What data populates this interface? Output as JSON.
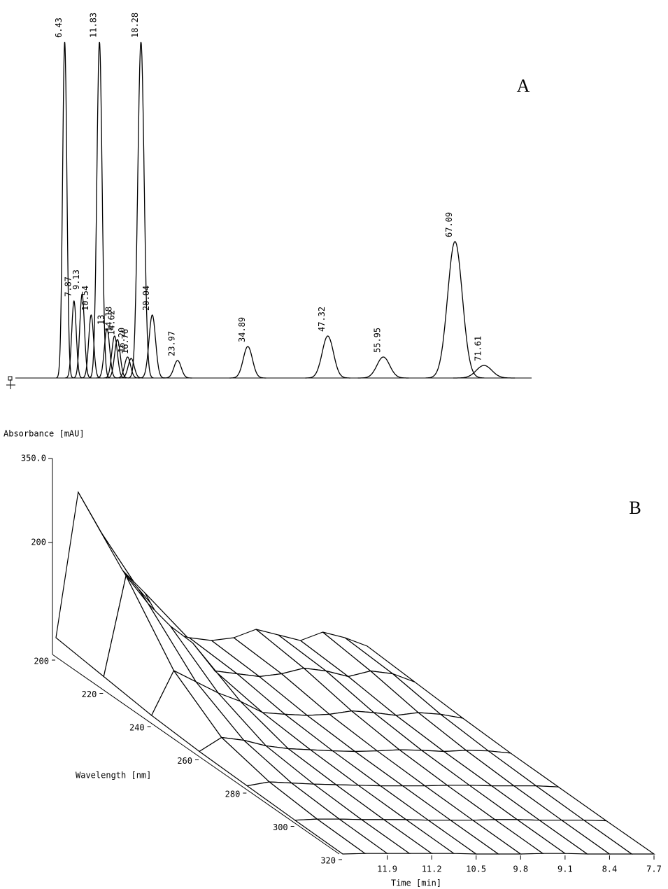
{
  "chart_data": [
    {
      "type": "chromatogram",
      "panel_label": "A",
      "x": [
        6.43,
        7.87,
        9.13,
        10.54,
        11.83,
        13,
        14.18,
        14.62,
        16.2,
        16.76,
        18.28,
        20.04,
        23.97,
        34.89,
        47.32,
        55.95,
        67.09,
        71.61
      ],
      "peak_labels": [
        "6.43",
        "7.87",
        "9.13",
        "10.54",
        "11.83",
        "13",
        "14.18",
        "14.62",
        "16.20",
        "16.76",
        "18.28",
        "20.04",
        "23.97",
        "34.89",
        "47.32",
        "55.95",
        "67.09",
        "71.61"
      ],
      "values": [
        480,
        110,
        120,
        90,
        480,
        70,
        60,
        55,
        30,
        28,
        480,
        90,
        25,
        45,
        60,
        30,
        195,
        18
      ],
      "xlim": [
        -2,
        79
      ],
      "ylim": [
        0,
        500
      ],
      "color": "#000000"
    },
    {
      "type": "surface3d",
      "panel_label": "B",
      "z_label": "Absorbance [mAU]",
      "wavelength_label": "Wavelength [nm]",
      "time_label": "Time [min]",
      "wavelengths": [
        200,
        220,
        240,
        260,
        280,
        300,
        320
      ],
      "times": [
        12.6,
        12.25,
        11.9,
        11.55,
        11.2,
        10.85,
        10.5,
        10.15,
        9.8,
        9.45,
        9.1,
        8.75,
        8.4,
        8.05,
        7.7
      ],
      "z": [
        [
          30,
          290,
          220,
          150,
          110,
          40,
          30,
          25,
          30,
          45,
          35,
          25,
          40,
          30,
          15
        ],
        [
          20,
          200,
          150,
          110,
          80,
          30,
          25,
          20,
          25,
          35,
          30,
          20,
          30,
          25,
          10
        ],
        [
          10,
          90,
          70,
          50,
          35,
          15,
          12,
          10,
          12,
          18,
          15,
          10,
          15,
          12,
          5
        ],
        [
          5,
          30,
          25,
          15,
          10,
          8,
          6,
          5,
          6,
          8,
          7,
          5,
          7,
          6,
          2
        ],
        [
          3,
          10,
          8,
          6,
          5,
          4,
          3,
          3,
          3,
          4,
          4,
          3,
          3,
          3,
          1
        ],
        [
          1,
          3,
          3,
          2,
          2,
          2,
          1,
          1,
          1,
          2,
          2,
          1,
          1,
          1,
          0
        ],
        [
          0,
          1,
          1,
          1,
          1,
          1,
          0,
          0,
          0,
          1,
          1,
          0,
          0,
          0,
          0
        ]
      ],
      "time_lim": [
        12.6,
        7.7
      ],
      "wavelength_lim": [
        200,
        320
      ],
      "absorbance_lim": [
        0,
        350
      ],
      "absorbance_ticks": [
        {
          "value": 350,
          "label": "350.0"
        },
        200
      ],
      "wavelength_ticks": [
        200,
        220,
        240,
        260,
        280,
        300,
        320
      ],
      "time_ticks": [
        11.9,
        11.2,
        10.5,
        9.8,
        9.1,
        8.4,
        7.7
      ],
      "color": "#000000"
    }
  ]
}
